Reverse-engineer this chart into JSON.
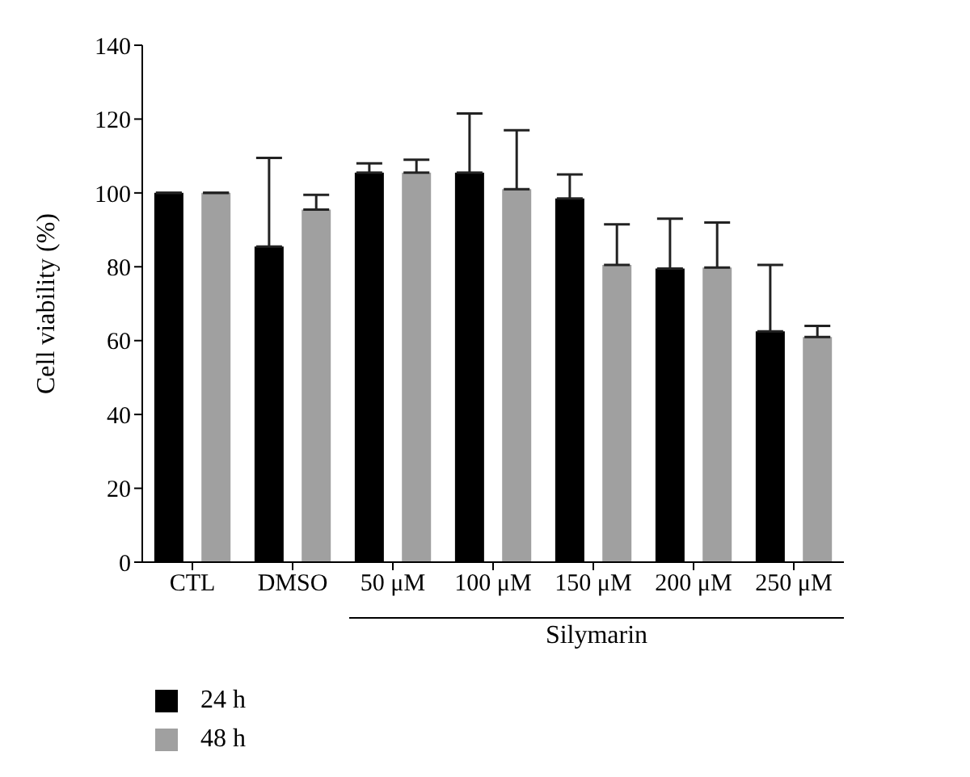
{
  "chart_data": {
    "type": "bar",
    "ylabel": "Cell viability (%)",
    "categories": [
      "CTL",
      "DMSO",
      "50 μM",
      "100 μM",
      "150 μM",
      "200 μM",
      "250 μM"
    ],
    "series": [
      {
        "name": "24 h",
        "color": "#000000",
        "values": [
          100,
          85.5,
          105.5,
          105.5,
          98.5,
          79.5,
          62.5
        ],
        "errors": [
          null,
          [
            85.5,
            109.5
          ],
          [
            105.5,
            108
          ],
          [
            105.5,
            121.5
          ],
          [
            98.5,
            105
          ],
          [
            79.5,
            93
          ],
          [
            62.5,
            80.5
          ]
        ]
      },
      {
        "name": "48 h",
        "color": "#a0a0a0",
        "values": [
          100,
          95.5,
          105.5,
          101,
          80.5,
          79.8,
          61
        ],
        "errors": [
          null,
          [
            95.5,
            99.5
          ],
          [
            105.5,
            109
          ],
          [
            101,
            117
          ],
          [
            80.5,
            91.5
          ],
          [
            79.8,
            92
          ],
          [
            61,
            64
          ]
        ]
      }
    ],
    "ylim": [
      0,
      140
    ],
    "yticks": [
      0,
      20,
      40,
      60,
      80,
      100,
      120,
      140
    ],
    "grid": false,
    "legend": "bottom left",
    "annotations": [
      "Silymarin"
    ]
  }
}
